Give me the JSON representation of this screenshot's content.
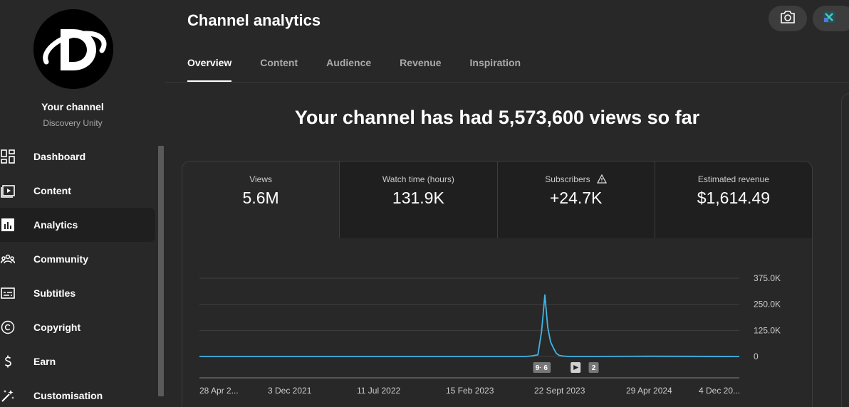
{
  "sidebar": {
    "channel_title": "Your channel",
    "channel_name": "Discovery Unity",
    "items": [
      {
        "label": "Dashboard",
        "icon": "dashboard-icon"
      },
      {
        "label": "Content",
        "icon": "content-icon"
      },
      {
        "label": "Analytics",
        "icon": "analytics-icon",
        "active": true
      },
      {
        "label": "Community",
        "icon": "community-icon"
      },
      {
        "label": "Subtitles",
        "icon": "subtitles-icon"
      },
      {
        "label": "Copyright",
        "icon": "copyright-icon"
      },
      {
        "label": "Earn",
        "icon": "earn-icon"
      },
      {
        "label": "Customisation",
        "icon": "customisation-icon"
      }
    ]
  },
  "header": {
    "title": "Channel analytics",
    "tabs": [
      {
        "label": "Overview",
        "active": true
      },
      {
        "label": "Content"
      },
      {
        "label": "Audience"
      },
      {
        "label": "Revenue"
      },
      {
        "label": "Inspiration"
      }
    ]
  },
  "headline": "Your channel has had 5,573,600 views so far",
  "metrics": [
    {
      "label": "Views",
      "value": "5.6M"
    },
    {
      "label": "Watch time (hours)",
      "value": "131.9K"
    },
    {
      "label": "Subscribers",
      "value": "+24.7K",
      "icon": "warning-icon"
    },
    {
      "label": "Estimated revenue",
      "value": "$1,614.49"
    }
  ],
  "colors": {
    "background": "#282828",
    "line": "#41b4e6",
    "grid": "#3f3f3f"
  },
  "chart_data": {
    "type": "line",
    "yticks": [
      "375.0K",
      "250.0K",
      "125.0K",
      "0"
    ],
    "ylim": [
      0,
      375000
    ],
    "xticks": [
      "28 Apr 2...",
      "3 Dec 2021",
      "11 Jul 2022",
      "15 Feb 2023",
      "22 Sept 2023",
      "29 Apr 2024",
      "4 Dec 20..."
    ],
    "series": [
      {
        "x": [
          "28 Apr 2021",
          "1 Jul 2023",
          "15 Jul 2023",
          "1 Aug 2023",
          "10 Aug 2023",
          "18 Aug 2023",
          "25 Aug 2023",
          "1 Sept 2023",
          "8 Sept 2023",
          "15 Sept 2023",
          "22 Sept 2023",
          "1 Oct 2023",
          "15 Oct 2023",
          "29 Apr 2024",
          "4 Dec 2024"
        ],
        "y": [
          0,
          0,
          2000,
          8000,
          120000,
          295000,
          140000,
          70000,
          40000,
          15000,
          5000,
          2000,
          0,
          1000,
          0
        ]
      }
    ],
    "markers": [
      {
        "label": "9+",
        "date": "5 Aug 2023"
      },
      {
        "label": "6",
        "date": "20 Aug 2023"
      },
      {
        "label": "",
        "date": "1 Nov 2023",
        "icon": "play-icon"
      },
      {
        "label": "2",
        "date": "15 Dec 2023"
      }
    ]
  }
}
